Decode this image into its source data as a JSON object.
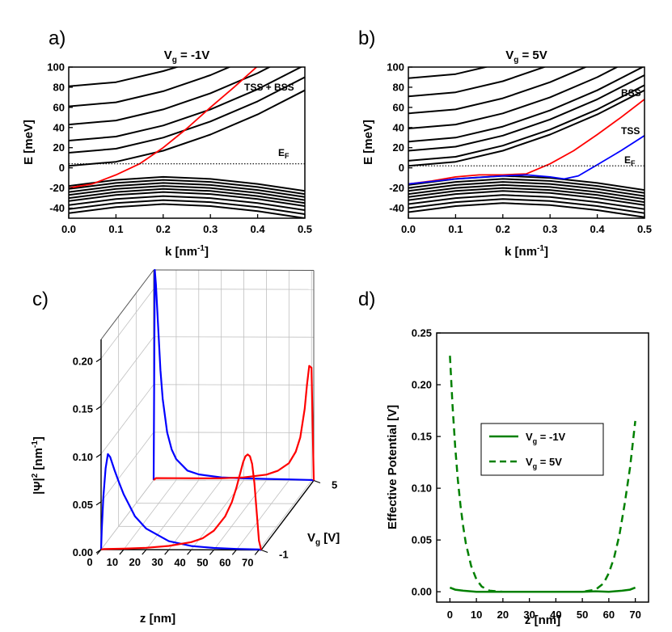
{
  "panel_labels": [
    "a)",
    "b)",
    "c)",
    "d)"
  ],
  "chart_data": [
    {
      "id": "a",
      "type": "line",
      "title": "V_g = -1V",
      "title_main": "V",
      "title_sub": "g",
      "title_rest": " = -1V",
      "xlabel": "k [nm^-1]",
      "xlabel_main": "k [nm",
      "xlabel_sup": "-1",
      "xlabel_end": "]",
      "ylabel": "E [meV]",
      "xlim": [
        0,
        0.5
      ],
      "ylim": [
        -50,
        100
      ],
      "xticks": [
        "0.0",
        "0.1",
        "0.2",
        "0.3",
        "0.4",
        "0.5"
      ],
      "yticks": [
        "-40",
        "-20",
        "0",
        "20",
        "40",
        "60",
        "80",
        "100"
      ],
      "fermi_level": 4,
      "fermi_label_main": "E",
      "fermi_label_sub": "F",
      "annotation": "TSS + BSS",
      "series": [
        {
          "color": "#ff0000",
          "x": [
            0,
            0.05,
            0.1,
            0.15,
            0.2,
            0.25,
            0.3,
            0.35,
            0.4
          ],
          "y": [
            -20,
            -16,
            -7,
            4,
            20,
            39,
            60,
            80,
            101
          ]
        },
        {
          "color": "#000000",
          "x": [
            0,
            0.1,
            0.2,
            0.3,
            0.4,
            0.5
          ],
          "y": [
            2,
            6,
            17,
            33,
            53,
            77
          ]
        },
        {
          "color": "#000000",
          "x": [
            0,
            0.1,
            0.2,
            0.3,
            0.4,
            0.5
          ],
          "y": [
            15,
            19,
            30,
            46,
            66,
            90
          ]
        },
        {
          "color": "#000000",
          "x": [
            0,
            0.1,
            0.2,
            0.3,
            0.4,
            0.5
          ],
          "y": [
            27,
            31,
            42,
            58,
            78,
            102
          ]
        },
        {
          "color": "#000000",
          "x": [
            0,
            0.1,
            0.2,
            0.3,
            0.4,
            0.45
          ],
          "y": [
            43,
            47,
            58,
            74,
            94,
            106
          ]
        },
        {
          "color": "#000000",
          "x": [
            0,
            0.1,
            0.2,
            0.3,
            0.35
          ],
          "y": [
            61,
            65,
            76,
            92,
            102
          ]
        },
        {
          "color": "#000000",
          "x": [
            0,
            0.1,
            0.2,
            0.25,
            0.3
          ],
          "y": [
            81,
            85,
            96,
            103,
            110
          ]
        },
        {
          "color": "#000000",
          "x": [
            0,
            0.1,
            0.2,
            0.3,
            0.4,
            0.5
          ],
          "y": [
            -18,
            -12,
            -9,
            -11,
            -16,
            -23
          ]
        },
        {
          "color": "#000000",
          "x": [
            0,
            0.1,
            0.2,
            0.3,
            0.4,
            0.5
          ],
          "y": [
            -21,
            -15,
            -12,
            -14,
            -19,
            -26
          ]
        },
        {
          "color": "#000000",
          "x": [
            0,
            0.1,
            0.2,
            0.3,
            0.4,
            0.5
          ],
          "y": [
            -24,
            -18,
            -15,
            -17,
            -22,
            -29
          ]
        },
        {
          "color": "#000000",
          "x": [
            0,
            0.1,
            0.2,
            0.3,
            0.4,
            0.5
          ],
          "y": [
            -27,
            -21,
            -18,
            -20,
            -25,
            -32
          ]
        },
        {
          "color": "#000000",
          "x": [
            0,
            0.1,
            0.2,
            0.3,
            0.4,
            0.5
          ],
          "y": [
            -30,
            -24,
            -21,
            -23,
            -28,
            -35
          ]
        },
        {
          "color": "#000000",
          "x": [
            0,
            0.1,
            0.2,
            0.3,
            0.4,
            0.5
          ],
          "y": [
            -33,
            -27,
            -24,
            -26,
            -31,
            -38
          ]
        },
        {
          "color": "#000000",
          "x": [
            0,
            0.1,
            0.2,
            0.3,
            0.4,
            0.5
          ],
          "y": [
            -37,
            -31,
            -28,
            -30,
            -35,
            -42
          ]
        },
        {
          "color": "#000000",
          "x": [
            0,
            0.1,
            0.2,
            0.3,
            0.4,
            0.5
          ],
          "y": [
            -41,
            -35,
            -32,
            -34,
            -39,
            -46
          ]
        },
        {
          "color": "#000000",
          "x": [
            0,
            0.1,
            0.2,
            0.3,
            0.4,
            0.5
          ],
          "y": [
            -45,
            -39,
            -36,
            -38,
            -43,
            -50
          ]
        }
      ]
    },
    {
      "id": "b",
      "type": "line",
      "title": "V_g = 5V",
      "title_main": "V",
      "title_sub": "g",
      "title_rest": " = 5V",
      "xlabel": "k [nm^-1]",
      "xlabel_main": "k [nm",
      "xlabel_sup": "-1",
      "xlabel_end": "]",
      "ylabel": "E [meV]",
      "xlim": [
        0,
        0.5
      ],
      "ylim": [
        -50,
        100
      ],
      "xticks": [
        "0.0",
        "0.1",
        "0.2",
        "0.3",
        "0.4",
        "0.5"
      ],
      "yticks": [
        "-40",
        "-20",
        "0",
        "20",
        "40",
        "60",
        "80",
        "100"
      ],
      "fermi_level": 2,
      "fermi_label_main": "E",
      "fermi_label_sub": "F",
      "annotations": [
        "BSS",
        "TSS"
      ],
      "series": [
        {
          "name": "BSS",
          "color": "#ff0000",
          "x": [
            0,
            0.05,
            0.1,
            0.15,
            0.2,
            0.25,
            0.3,
            0.35,
            0.4,
            0.45,
            0.5
          ],
          "y": [
            -16,
            -13,
            -9,
            -7,
            -7,
            -6,
            4,
            17,
            33,
            50,
            68
          ]
        },
        {
          "name": "TSS",
          "color": "#0000ff",
          "x": [
            0,
            0.1,
            0.2,
            0.25,
            0.3,
            0.33,
            0.36,
            0.4,
            0.45,
            0.5
          ],
          "y": [
            -16,
            -11,
            -8,
            -7,
            -9,
            -11,
            -8,
            3,
            17,
            32
          ]
        },
        {
          "color": "#000000",
          "x": [
            0,
            0.1,
            0.2,
            0.3,
            0.4,
            0.5
          ],
          "y": [
            2,
            6,
            17,
            33,
            53,
            77
          ]
        },
        {
          "color": "#000000",
          "x": [
            0,
            0.1,
            0.2,
            0.3,
            0.4,
            0.5
          ],
          "y": [
            7,
            11,
            22,
            38,
            58,
            82
          ]
        },
        {
          "color": "#000000",
          "x": [
            0,
            0.1,
            0.2,
            0.3,
            0.4,
            0.5
          ],
          "y": [
            17,
            21,
            32,
            48,
            68,
            92
          ]
        },
        {
          "color": "#000000",
          "x": [
            0,
            0.1,
            0.2,
            0.3,
            0.4,
            0.5
          ],
          "y": [
            26,
            30,
            41,
            57,
            77,
            101
          ]
        },
        {
          "color": "#000000",
          "x": [
            0,
            0.1,
            0.2,
            0.3,
            0.4,
            0.45
          ],
          "y": [
            39,
            43,
            54,
            70,
            90,
            102
          ]
        },
        {
          "color": "#000000",
          "x": [
            0,
            0.1,
            0.2,
            0.3,
            0.4
          ],
          "y": [
            54,
            58,
            69,
            85,
            105
          ]
        },
        {
          "color": "#000000",
          "x": [
            0,
            0.1,
            0.2,
            0.3,
            0.35
          ],
          "y": [
            71,
            75,
            86,
            102,
            111
          ]
        },
        {
          "color": "#000000",
          "x": [
            0,
            0.1,
            0.2,
            0.25
          ],
          "y": [
            89,
            93,
            104,
            111
          ]
        },
        {
          "color": "#000000",
          "x": [
            0,
            0.1,
            0.2,
            0.3,
            0.4,
            0.5
          ],
          "y": [
            -17,
            -11,
            -8,
            -10,
            -15,
            -22
          ]
        },
        {
          "color": "#000000",
          "x": [
            0,
            0.1,
            0.2,
            0.3,
            0.4,
            0.5
          ],
          "y": [
            -20,
            -14,
            -11,
            -13,
            -18,
            -25
          ]
        },
        {
          "color": "#000000",
          "x": [
            0,
            0.1,
            0.2,
            0.3,
            0.4,
            0.5
          ],
          "y": [
            -23,
            -17,
            -14,
            -16,
            -21,
            -28
          ]
        },
        {
          "color": "#000000",
          "x": [
            0,
            0.1,
            0.2,
            0.3,
            0.4,
            0.5
          ],
          "y": [
            -26,
            -20,
            -17,
            -19,
            -24,
            -31
          ]
        },
        {
          "color": "#000000",
          "x": [
            0,
            0.1,
            0.2,
            0.3,
            0.4,
            0.5
          ],
          "y": [
            -29,
            -23,
            -20,
            -22,
            -27,
            -34
          ]
        },
        {
          "color": "#000000",
          "x": [
            0,
            0.1,
            0.2,
            0.3,
            0.4,
            0.5
          ],
          "y": [
            -32,
            -26,
            -23,
            -25,
            -30,
            -37
          ]
        },
        {
          "color": "#000000",
          "x": [
            0,
            0.1,
            0.2,
            0.3,
            0.4,
            0.5
          ],
          "y": [
            -36,
            -30,
            -27,
            -29,
            -34,
            -41
          ]
        },
        {
          "color": "#000000",
          "x": [
            0,
            0.1,
            0.2,
            0.3,
            0.4,
            0.5
          ],
          "y": [
            -40,
            -34,
            -31,
            -33,
            -38,
            -45
          ]
        },
        {
          "color": "#000000",
          "x": [
            0,
            0.1,
            0.2,
            0.3,
            0.4,
            0.5
          ],
          "y": [
            -44,
            -38,
            -35,
            -37,
            -42,
            -49
          ]
        }
      ]
    },
    {
      "id": "c",
      "type": "line",
      "projection": "3d",
      "xlabel": "z [nm]",
      "ylabel": "|psi|^2 [nm^-1]",
      "ylabel_psi": "|Ψ|",
      "ylabel_sup1": "2",
      "ylabel_mid": " [nm",
      "ylabel_sup2": "-1",
      "ylabel_end": "]",
      "depth_label": "V_g [V]",
      "depth_label_main": "V",
      "depth_label_sub": "g",
      "depth_label_rest": " [V]",
      "xticks": [
        "0",
        "10",
        "20",
        "30",
        "40",
        "50",
        "60",
        "70"
      ],
      "zticks": [
        "0.00",
        "0.05",
        "0.10",
        "0.15",
        "0.20"
      ],
      "depth_ticks": [
        "-1",
        "5"
      ],
      "xlim": [
        0,
        75
      ],
      "zlim": [
        0,
        0.22
      ],
      "series": [
        {
          "color": "#0000ff",
          "depth": 5,
          "x": [
            0,
            0.5,
            1,
            2,
            3,
            4,
            6,
            8,
            10,
            15,
            20,
            30,
            40,
            50,
            60,
            70,
            71
          ],
          "y": [
            0,
            0.22,
            0.205,
            0.16,
            0.115,
            0.085,
            0.05,
            0.032,
            0.022,
            0.01,
            0.006,
            0.003,
            0.002,
            0.0015,
            0.001,
            0.0005,
            0
          ]
        },
        {
          "color": "#ff0000",
          "depth": 5,
          "x": [
            0,
            1,
            10,
            20,
            30,
            40,
            50,
            55,
            60,
            63,
            65,
            67,
            68,
            69,
            70,
            71
          ],
          "y": [
            0,
            0.002,
            0.002,
            0.002,
            0.002,
            0.003,
            0.006,
            0.01,
            0.018,
            0.03,
            0.045,
            0.075,
            0.1,
            0.12,
            0.118,
            0
          ]
        },
        {
          "color": "#0000ff",
          "depth": -1,
          "x": [
            0,
            0.3,
            1,
            2,
            3,
            4,
            6,
            8,
            10,
            15,
            20,
            30,
            40,
            50,
            60,
            70,
            71
          ],
          "y": [
            0,
            0.02,
            0.055,
            0.085,
            0.1,
            0.097,
            0.083,
            0.07,
            0.058,
            0.035,
            0.022,
            0.009,
            0.004,
            0.002,
            0.001,
            0.0005,
            0
          ]
        },
        {
          "color": "#ff0000",
          "depth": -1,
          "x": [
            0,
            1,
            10,
            20,
            30,
            40,
            45,
            50,
            55,
            58,
            60,
            62,
            63,
            64,
            65,
            66,
            67,
            68,
            69,
            70,
            71
          ],
          "y": [
            0,
            0.0005,
            0.001,
            0.002,
            0.004,
            0.008,
            0.012,
            0.02,
            0.035,
            0.05,
            0.065,
            0.083,
            0.092,
            0.098,
            0.1,
            0.098,
            0.09,
            0.07,
            0.04,
            0.01,
            0
          ]
        }
      ]
    },
    {
      "id": "d",
      "type": "line",
      "xlabel": "z [nm]",
      "ylabel": "Effective Potential  [V]",
      "xlim": [
        -5,
        75
      ],
      "ylim": [
        -0.01,
        0.25
      ],
      "xticks": [
        "0",
        "10",
        "20",
        "30",
        "40",
        "50",
        "60",
        "70"
      ],
      "yticks": [
        "0.00",
        "0.05",
        "0.10",
        "0.15",
        "0.20",
        "0.25"
      ],
      "legend": [
        "V_g = -1V",
        "V_g = 5V"
      ],
      "legend_main": [
        "V",
        "V"
      ],
      "legend_sub": [
        "g",
        "g"
      ],
      "legend_rest": [
        " = -1V",
        " = 5V"
      ],
      "legend_position": "center",
      "series": [
        {
          "name": "V_g = -1V",
          "color": "#008000",
          "style": "solid",
          "x": [
            0,
            2,
            5,
            10,
            20,
            30,
            40,
            50,
            55,
            60,
            65,
            68,
            70
          ],
          "y": [
            0.004,
            0.002,
            0.001,
            0.0,
            0.0,
            0.0,
            0.0,
            0.0,
            0.0005,
            0.0,
            0.001,
            0.002,
            0.004
          ]
        },
        {
          "name": "V_g = 5V",
          "color": "#008000",
          "style": "dashed",
          "x": [
            0,
            1,
            2,
            3,
            4,
            5,
            6,
            8,
            10,
            12,
            15,
            20,
            30,
            40,
            50,
            55,
            58,
            60,
            62,
            64,
            66,
            68,
            70
          ],
          "y": [
            0.228,
            0.18,
            0.14,
            0.108,
            0.083,
            0.063,
            0.047,
            0.025,
            0.012,
            0.005,
            0.001,
            0.0,
            0.0,
            0.0,
            0.0,
            0.002,
            0.008,
            0.018,
            0.033,
            0.055,
            0.085,
            0.12,
            0.165
          ]
        }
      ]
    }
  ]
}
